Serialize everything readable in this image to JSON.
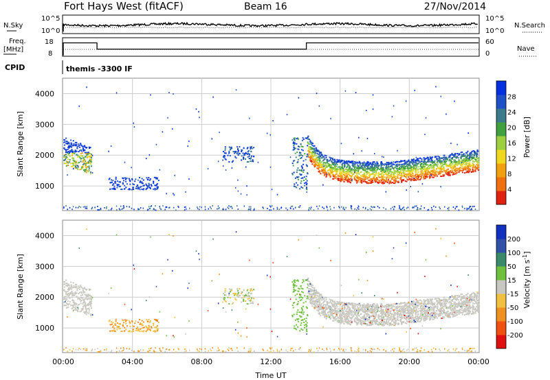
{
  "header": {
    "title": "Fort Hays West (fitACF)",
    "beam": "Beam 16",
    "date": "27/Nov/2014"
  },
  "noise_panel": {
    "left_label": "N.Sky",
    "right_label": "N.Search",
    "tick_top": "10^5",
    "tick_bottom": "10^0"
  },
  "freq_panel": {
    "left_label_line1": "Freq.",
    "left_label_line2": "[MHz]",
    "left_ticks": [
      "18",
      "8"
    ],
    "right_ticks": [
      "60",
      "0"
    ],
    "right_label": "Nave"
  },
  "cpid_panel": {
    "label": "CPID",
    "mode": "themis -3300 IF"
  },
  "chart_data": [
    {
      "type": "heatmap",
      "name": "power",
      "ylabel": "Slant Range [km]",
      "yticks": [
        "1000",
        "2000",
        "3000",
        "4000"
      ],
      "ylim": [
        200,
        4500
      ],
      "colorbar_label": "Power [dB]",
      "colorbar_ticks": [
        "4",
        "8",
        "12",
        "16",
        "20",
        "24",
        "28"
      ],
      "colorbar_range": [
        0,
        32
      ],
      "colorbar_colors": [
        "#0030e0",
        "#2050c8",
        "#3a7a8a",
        "#40a040",
        "#9cd040",
        "#f0d820",
        "#f0a010",
        "#f07010",
        "#e02010"
      ],
      "grid": true
    },
    {
      "type": "heatmap",
      "name": "velocity",
      "ylabel": "Slant Range [km]",
      "yticks": [
        "1000",
        "2000",
        "3000",
        "4000"
      ],
      "ylim": [
        200,
        4500
      ],
      "colorbar_label": "Velocity [m s^-1]",
      "colorbar_ticks": [
        "200",
        "100",
        "50",
        "15",
        "-15",
        "-50",
        "-100",
        "-200"
      ],
      "colorbar_colors": [
        "#1030c0",
        "#3050a8",
        "#3a8a6a",
        "#70c040",
        "#c8c8c0",
        "#f0c040",
        "#f09020",
        "#f05010",
        "#e01010"
      ],
      "grid": true
    }
  ],
  "x_axis": {
    "label": "Time UT",
    "ticks": [
      "00:00",
      "04:00",
      "08:00",
      "12:00",
      "16:00",
      "20:00",
      "00:00"
    ],
    "range_hours": [
      0,
      24
    ]
  },
  "freq_steps": [
    {
      "t0": 0,
      "t1": 1.95,
      "mhz": 15.5
    },
    {
      "t0": 1.95,
      "t1": 14.05,
      "mhz": 12
    },
    {
      "t0": 14.05,
      "t1": 24,
      "mhz": 15.5
    }
  ]
}
